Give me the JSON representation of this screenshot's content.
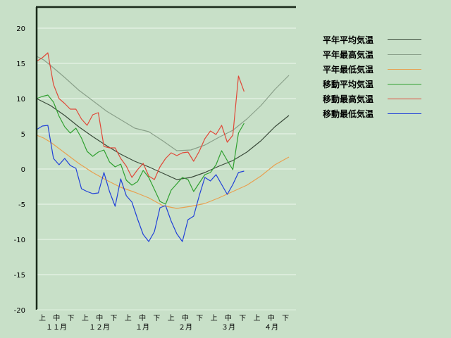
{
  "chart_data": {
    "type": "line",
    "y_ticks": [
      "20",
      "15",
      "10",
      "5",
      "0",
      "-5",
      "-10",
      "-15",
      "-20"
    ],
    "ylim": [
      -20,
      20
    ],
    "xlim": [
      0,
      180
    ],
    "grid": true,
    "legend_position": "top-right",
    "x_dekad_labels": [
      "上",
      "中",
      "下",
      "上",
      "中",
      "下",
      "上",
      "中",
      "下",
      "上",
      "中",
      "下",
      "上",
      "中",
      "下",
      "上",
      "中",
      "下"
    ],
    "month_labels": [
      "１１月",
      "１２月",
      "１月",
      "２月",
      "３月",
      "４月"
    ],
    "series": [
      {
        "name": "平年平均気温",
        "color": "#3a4a3a",
        "x": [
          0,
          5,
          10,
          20,
          30,
          40,
          50,
          60,
          70,
          80,
          90,
          100,
          110,
          120,
          130,
          140,
          150,
          160,
          170,
          180
        ],
        "y": [
          10,
          9.5,
          9,
          7.6,
          6,
          4.6,
          3.3,
          2.1,
          1.1,
          0.3,
          -0.6,
          -1.5,
          -1.2,
          -0.5,
          0.4,
          1.2,
          2.4,
          4.0,
          6.0,
          7.6
        ]
      },
      {
        "name": "平年最高気温",
        "color": "#8aa08a",
        "x": [
          0,
          5,
          10,
          20,
          30,
          40,
          50,
          60,
          70,
          80,
          90,
          100,
          110,
          120,
          130,
          140,
          150,
          160,
          170,
          180
        ],
        "y": [
          16,
          15.5,
          14.7,
          13.0,
          11.2,
          9.7,
          8.2,
          7.0,
          5.8,
          5.3,
          4.0,
          2.6,
          2.7,
          3.4,
          4.5,
          5.5,
          7.1,
          9.0,
          11.3,
          13.3
        ]
      },
      {
        "name": "平年最低気温",
        "color": "#e8a050",
        "x": [
          0,
          5,
          10,
          20,
          30,
          40,
          50,
          60,
          70,
          80,
          90,
          100,
          110,
          120,
          130,
          140,
          150,
          160,
          170,
          180
        ],
        "y": [
          4.8,
          4.4,
          3.8,
          2.3,
          0.8,
          -0.5,
          -1.6,
          -2.6,
          -3.3,
          -4.1,
          -5.2,
          -5.6,
          -5.3,
          -4.9,
          -4.1,
          -3.2,
          -2.3,
          -1.0,
          0.6,
          1.7
        ]
      },
      {
        "name": "移動平均気温",
        "color": "#30a030",
        "x": [
          0,
          4,
          8,
          12,
          16,
          20,
          24,
          28,
          32,
          36,
          40,
          44,
          48,
          52,
          56,
          60,
          64,
          68,
          72,
          76,
          80,
          84,
          88,
          92,
          96,
          100,
          104,
          108,
          112,
          116,
          120,
          124,
          128,
          132,
          136,
          140,
          144,
          148
        ],
        "y": [
          10,
          10.3,
          10.5,
          9.5,
          7.5,
          6.0,
          5.1,
          5.8,
          4.4,
          2.5,
          1.8,
          2.4,
          2.7,
          1.0,
          0.3,
          0.7,
          -1.6,
          -2.3,
          -1.8,
          -0.2,
          -1.2,
          -2.9,
          -4.6,
          -5.0,
          -3.0,
          -2.1,
          -1.2,
          -1.5,
          -3.2,
          -2.0,
          -0.8,
          -0.5,
          0.6,
          2.6,
          1.2,
          -0.1,
          5.1,
          6.5
        ]
      },
      {
        "name": "移動最高気温",
        "color": "#e04838",
        "x": [
          0,
          4,
          8,
          12,
          16,
          20,
          24,
          28,
          32,
          36,
          40,
          44,
          48,
          52,
          56,
          60,
          64,
          68,
          72,
          76,
          80,
          84,
          88,
          92,
          96,
          100,
          104,
          108,
          112,
          116,
          120,
          124,
          128,
          132,
          136,
          140,
          144,
          148
        ],
        "y": [
          15.3,
          15.8,
          16.5,
          12.0,
          10.0,
          9.3,
          8.5,
          8.5,
          7.1,
          6.2,
          7.7,
          8.0,
          3.2,
          3.0,
          3.0,
          1.5,
          0.4,
          -1.2,
          -0.1,
          0.8,
          -1.0,
          -1.5,
          0.3,
          1.5,
          2.3,
          1.9,
          2.3,
          2.4,
          1.1,
          2.5,
          4.3,
          5.4,
          4.9,
          6.2,
          3.8,
          4.8,
          13.2,
          11.0
        ]
      },
      {
        "name": "移動最低気温",
        "color": "#2040d8",
        "x": [
          0,
          4,
          8,
          12,
          16,
          20,
          24,
          28,
          32,
          36,
          40,
          44,
          48,
          52,
          56,
          60,
          64,
          68,
          72,
          76,
          80,
          84,
          88,
          92,
          96,
          100,
          104,
          108,
          112,
          116,
          120,
          124,
          128,
          132,
          136,
          140,
          144,
          148
        ],
        "y": [
          5.6,
          6.1,
          6.2,
          1.5,
          0.6,
          1.5,
          0.5,
          0.1,
          -2.8,
          -3.2,
          -3.5,
          -3.4,
          -0.5,
          -3.2,
          -5.3,
          -1.4,
          -3.8,
          -4.7,
          -7.1,
          -9.3,
          -10.3,
          -8.9,
          -5.5,
          -5.2,
          -7.4,
          -9.2,
          -10.3,
          -7.2,
          -6.7,
          -3.8,
          -1.2,
          -1.7,
          -0.8,
          -2.2,
          -3.6,
          -2.2,
          -0.5,
          -0.3
        ]
      }
    ]
  }
}
